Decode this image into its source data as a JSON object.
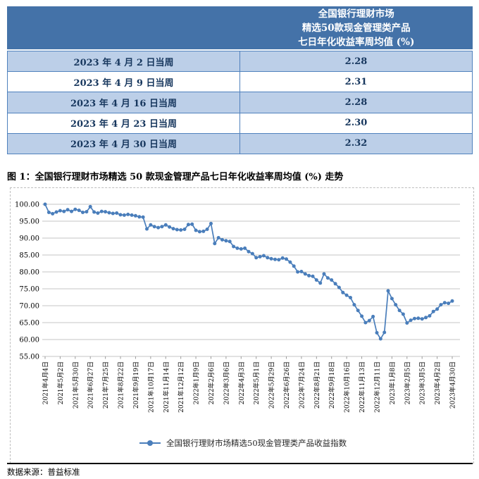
{
  "table": {
    "header_title_lines": [
      "全国银行理财市场",
      "精选50款现金管理类产品",
      "七日年化收益率周均值 (%)"
    ],
    "header_bg": "#4472A8",
    "row_alt_bg": "#BCCFE8",
    "border_color": "#4F81BD",
    "text_color": "#17375E",
    "rows": [
      {
        "period": "2023 年 4 月 2 日当周",
        "value": "2.28"
      },
      {
        "period": "2023 年 4 月 9 日当周",
        "value": "2.31"
      },
      {
        "period": "2023 年 4 月 16 日当周",
        "value": "2.28"
      },
      {
        "period": "2023 年 4 月 23 日当周",
        "value": "2.30"
      },
      {
        "period": "2023 年 4 月 30 日当周",
        "value": "2.32"
      }
    ]
  },
  "figure": {
    "caption": "图 1：全国银行理财市场精选 50 款现金管理产品七日年化收益率周均值 (%) 走势"
  },
  "chart_data": {
    "type": "line",
    "title": "",
    "xlabel": "",
    "ylabel": "",
    "ylim": [
      55,
      100
    ],
    "ytick_step": 5,
    "ytick_labels": [
      "55.00",
      "60.00",
      "65.00",
      "70.00",
      "75.00",
      "80.00",
      "85.00",
      "90.00",
      "95.00",
      "100.00"
    ],
    "grid": true,
    "legend_position": "bottom",
    "line_color": "#4A7EBB",
    "grid_color": "#C6C6C6",
    "x_unit": "week",
    "x_tick_every_n_points": 4,
    "x_tick_labels": [
      "2021年4月4日",
      "2021年5月2日",
      "2021年5月30日",
      "2021年6月27日",
      "2021年7月25日",
      "2021年8月22日",
      "2021年9月19日",
      "2021年10月17日",
      "2021年11月14日",
      "2021年12月12日",
      "2022年1月9日",
      "2022年2月6日",
      "2022年3月6日",
      "2022年4月3日",
      "2022年5月1日",
      "2022年5月29日",
      "2022年6月26日",
      "2022年7月24日",
      "2022年8月21日",
      "2022年9月18日",
      "2022年10月16日",
      "2022年11月13日",
      "2022年12月11日",
      "2023年1月8日",
      "2023年2月5日",
      "2023年3月5日",
      "2023年4月2日",
      "2023年4月30日"
    ],
    "series": [
      {
        "name": "全国银行理财市场精选50现金管理类产品收益指数",
        "values": [
          100.0,
          97.6,
          97.2,
          97.7,
          98.1,
          97.9,
          98.4,
          97.9,
          98.5,
          98.2,
          97.6,
          97.8,
          99.3,
          97.7,
          97.4,
          97.9,
          97.8,
          97.5,
          97.3,
          97.4,
          96.9,
          96.8,
          97.0,
          96.8,
          96.6,
          96.3,
          96.2,
          92.7,
          93.9,
          93.4,
          93.1,
          93.4,
          93.9,
          93.3,
          92.8,
          92.5,
          92.4,
          92.6,
          94.0,
          94.1,
          92.3,
          91.9,
          92.0,
          92.6,
          94.3,
          88.4,
          90.1,
          89.5,
          89.2,
          89.0,
          87.5,
          87.0,
          86.8,
          87.0,
          86.0,
          85.4,
          84.2,
          84.5,
          84.8,
          84.2,
          83.9,
          83.7,
          83.6,
          84.1,
          83.8,
          82.9,
          81.7,
          80.0,
          80.1,
          79.4,
          78.9,
          78.7,
          77.6,
          76.7,
          79.4,
          78.2,
          77.6,
          76.5,
          75.4,
          73.9,
          73.1,
          72.4,
          70.3,
          68.6,
          66.9,
          65.0,
          65.6,
          66.8,
          62.0,
          60.2,
          62.1,
          74.4,
          72.1,
          70.3,
          68.6,
          67.5,
          64.9,
          65.7,
          66.2,
          66.3,
          66.1,
          66.5,
          67.0,
          68.3,
          69.0,
          70.3,
          70.9,
          70.7,
          71.4
        ]
      }
    ]
  },
  "footer": {
    "source": "数据来源：普益标准"
  }
}
